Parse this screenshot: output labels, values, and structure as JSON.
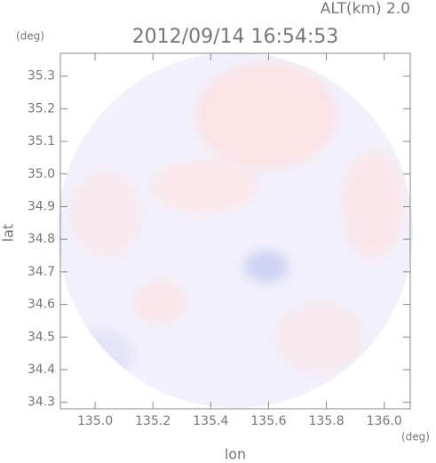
{
  "chart_data": {
    "type": "heatmap",
    "title": "2012/09/14 16:54:53",
    "annotation": "ALT(km) 2.0",
    "x_unit": "(deg)",
    "y_unit": "(deg)",
    "xlabel": "lon",
    "ylabel": "lat",
    "xlim": [
      134.88,
      136.09
    ],
    "ylim": [
      34.28,
      35.37
    ],
    "xticks": [
      {
        "value": 135.0,
        "label": "135.0"
      },
      135.2,
      135.4,
      135.6,
      135.8,
      {
        "value": 136.0,
        "label": "136.0"
      }
    ],
    "yticks": [
      34.3,
      34.4,
      34.5,
      34.6,
      34.7,
      34.8,
      34.9,
      {
        "value": 35.0,
        "label": "35.0"
      },
      35.1,
      35.2,
      35.3
    ]
  }
}
